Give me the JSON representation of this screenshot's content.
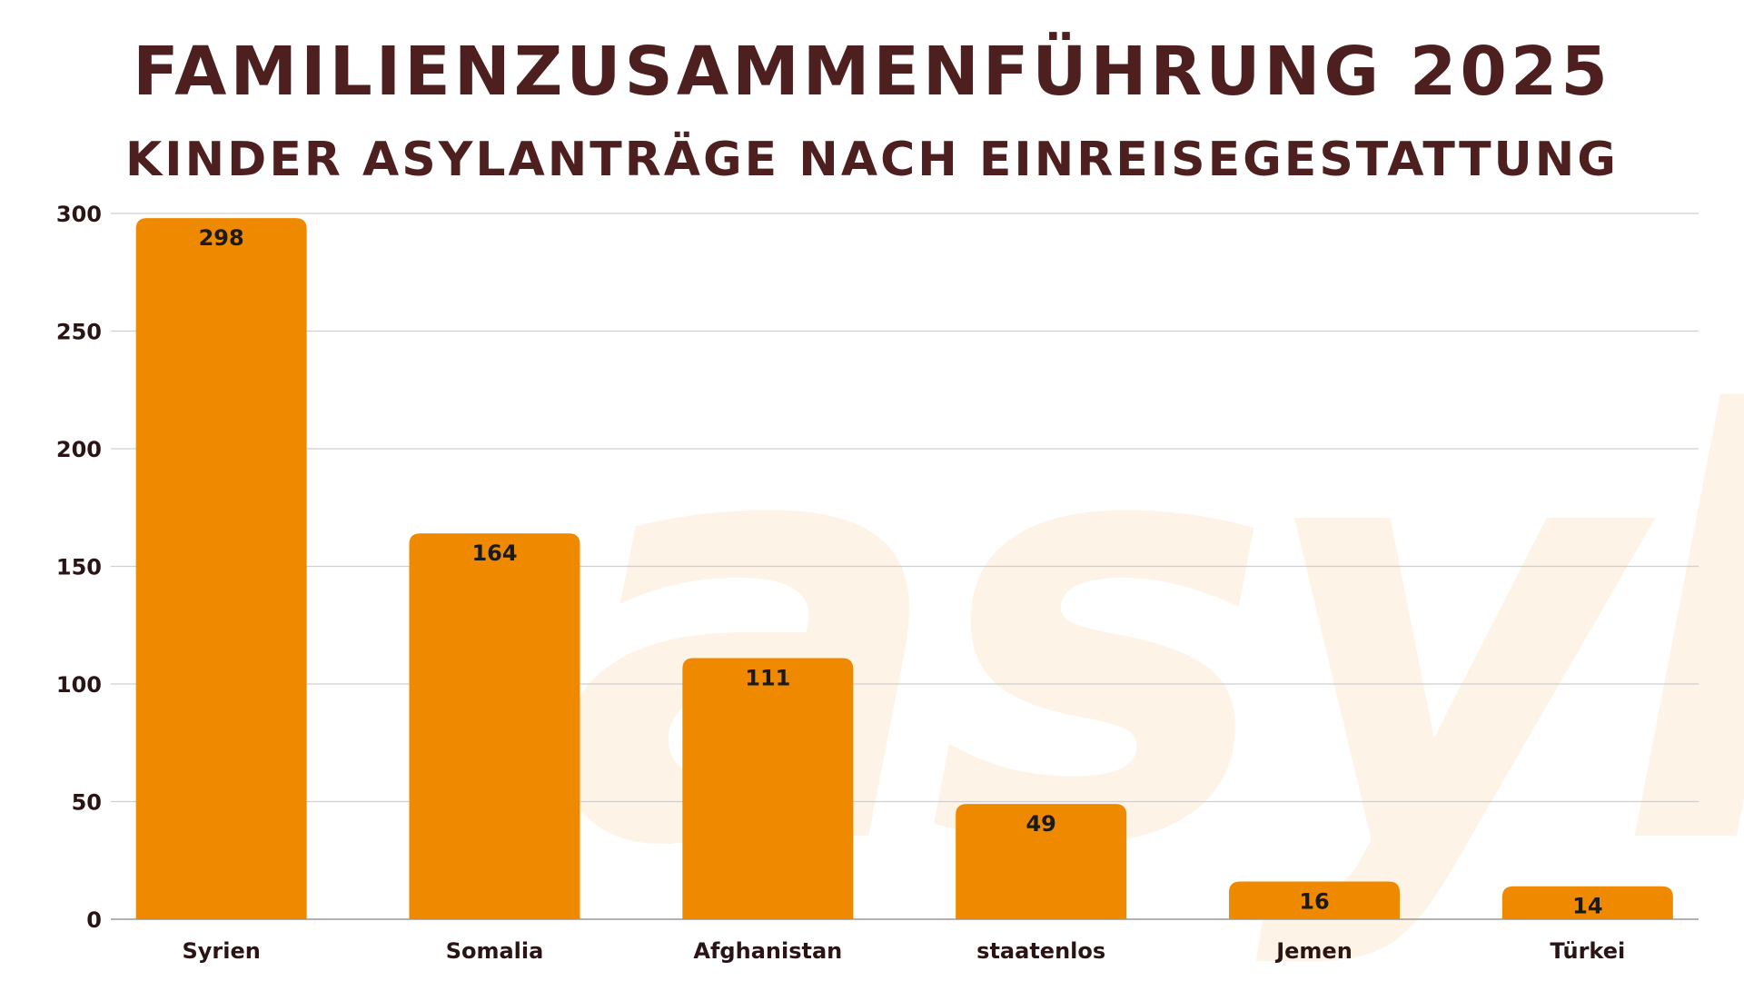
{
  "title": "FAMILIENZUSAMMENFÜHRUNG 2025",
  "subtitle": "KINDER ASYLANTRÄGE NACH EINREISEGESTATTUNG",
  "watermark_text": "asyl",
  "colors": {
    "bar": "#ef8a00",
    "title": "#4e1f1f",
    "grid": "#cfcfcf",
    "watermark": "#fdf3e6"
  },
  "chart_data": {
    "type": "bar",
    "categories": [
      "Syrien",
      "Somalia",
      "Afghanistan",
      "staatenlos",
      "Jemen",
      "Türkei"
    ],
    "values": [
      298,
      164,
      111,
      49,
      16,
      14
    ],
    "title": "FAMILIENZUSAMMENFÜHRUNG 2025",
    "subtitle": "KINDER ASYLANTRÄGE NACH EINREISEGESTATTUNG",
    "xlabel": "",
    "ylabel": "",
    "ylim": [
      0,
      300
    ],
    "yticks": [
      0,
      50,
      100,
      150,
      200,
      250,
      300
    ],
    "grid": true,
    "data_labels": true,
    "legend": "none"
  }
}
